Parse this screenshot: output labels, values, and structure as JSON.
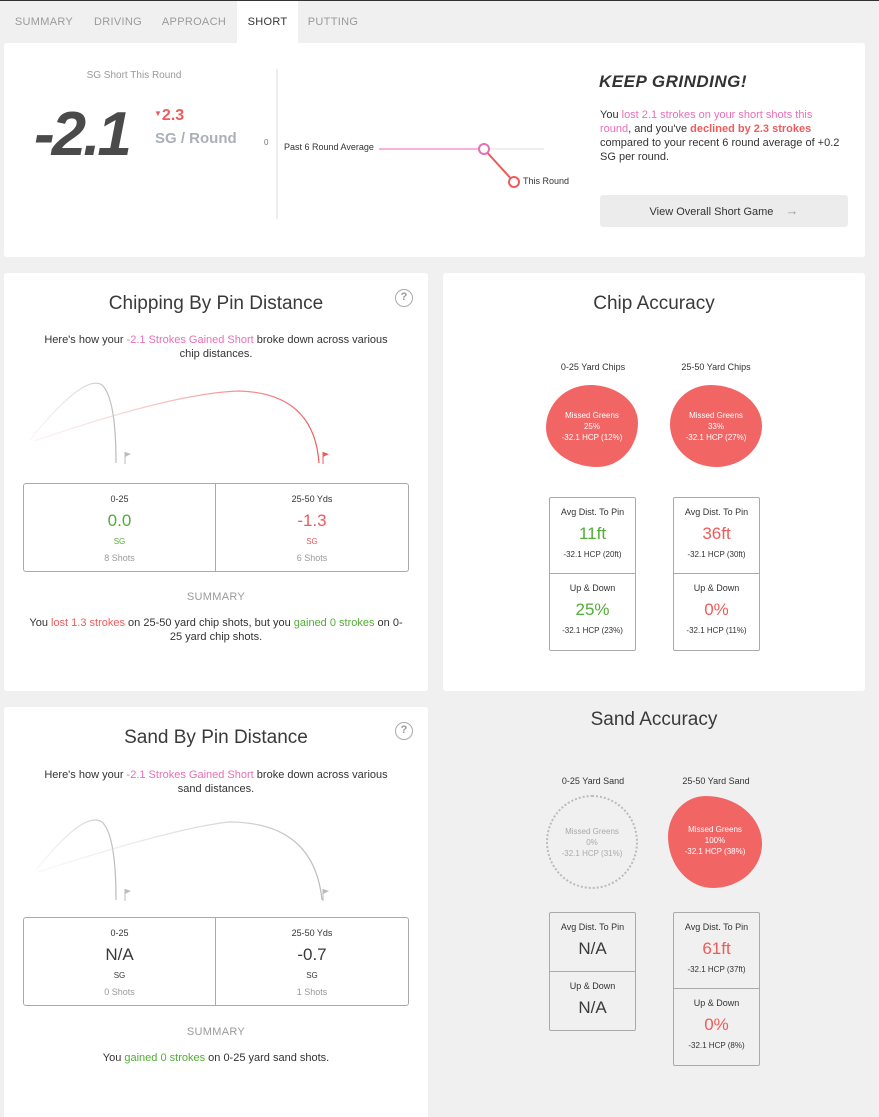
{
  "tabs": [
    {
      "label": "SUMMARY"
    },
    {
      "label": "DRIVING"
    },
    {
      "label": "APPROACH"
    },
    {
      "label": "SHORT"
    },
    {
      "label": "PUTTING"
    }
  ],
  "top": {
    "heading": "SG Short This Round",
    "big_value": "-2.1",
    "delta": "2.3",
    "unit": "SG / Round",
    "axis_zero": "0",
    "avg_label": "Past 6 Round Average",
    "this_label": "This Round",
    "headline": "KEEP GRINDING!",
    "desc": {
      "p1": "You ",
      "p2": "lost 2.1 strokes on your short shots this round",
      "p3": ", and you've ",
      "p4": "declined by 2.3 strokes",
      "p5": " compared to your recent 6 round average of +0.2 SG per round."
    },
    "button": "View Overall Short Game"
  },
  "chipping": {
    "title": "Chipping By Pin Distance",
    "help": "?",
    "intro": {
      "p1": "Here's how your ",
      "p2": "-2.1 Strokes Gained Short",
      "p3": " broke down across various chip distances."
    },
    "cells": [
      {
        "label": "0-25",
        "value": "0.0",
        "unit": "SG",
        "shots": "8 Shots"
      },
      {
        "label": "25-50 Yds",
        "value": "-1.3",
        "unit": "SG",
        "shots": "6 Shots"
      }
    ],
    "summary_heading": "SUMMARY",
    "summary": {
      "p1": "You ",
      "p2": "lost 1.3 strokes",
      "p3": " on 25-50 yard chip shots, but you ",
      "p4": "gained 0 strokes",
      "p5": " on 0-25 yard chip shots."
    }
  },
  "chip_accuracy": {
    "title": "Chip Accuracy",
    "groups": [
      {
        "label": "0-25 Yard Chips",
        "blob": {
          "l1": "Missed Greens",
          "l2": "25%",
          "l3": "-32.1 HCP (12%)"
        },
        "avg_h": "Avg Dist. To Pin",
        "avg_v": "11ft",
        "avg_s": "-32.1 HCP (20ft)",
        "ud_h": "Up & Down",
        "ud_v": "25%",
        "ud_s": "-32.1 HCP (23%)"
      },
      {
        "label": "25-50 Yard Chips",
        "blob": {
          "l1": "Missed Greens",
          "l2": "33%",
          "l3": "-32.1 HCP (27%)"
        },
        "avg_h": "Avg Dist. To Pin",
        "avg_v": "36ft",
        "avg_s": "-32.1 HCP (30ft)",
        "ud_h": "Up & Down",
        "ud_v": "0%",
        "ud_s": "-32.1 HCP (11%)"
      }
    ]
  },
  "sand": {
    "title": "Sand By Pin Distance",
    "help": "?",
    "intro": {
      "p1": "Here's how your ",
      "p2": "-2.1 Strokes Gained Short",
      "p3": " broke down across various sand distances."
    },
    "cells": [
      {
        "label": "0-25",
        "value": "N/A",
        "unit": "SG",
        "shots": "0 Shots"
      },
      {
        "label": "25-50 Yds",
        "value": "-0.7",
        "unit": "SG",
        "shots": "1 Shots"
      }
    ],
    "summary_heading": "SUMMARY",
    "summary": {
      "p1": "You ",
      "p2": "gained 0 strokes",
      "p3": " on 0-25 yard sand shots."
    }
  },
  "sand_accuracy": {
    "title": "Sand Accuracy",
    "groups": [
      {
        "label": "0-25 Yard Sand",
        "blob": {
          "l1": "Missed Greens",
          "l2": "0%",
          "l3": "-32.1 HCP (31%)"
        },
        "avg_h": "Avg Dist. To Pin",
        "avg_v": "N/A",
        "ud_h": "Up & Down",
        "ud_v": "N/A"
      },
      {
        "label": "25-50 Yard Sand",
        "blob": {
          "l1": "Missed Greens",
          "l2": "100%",
          "l3": "-32.1 HCP (38%)"
        },
        "avg_h": "Avg Dist. To Pin",
        "avg_v": "61ft",
        "avg_s": "-32.1 HCP (37ft)",
        "ud_h": "Up & Down",
        "ud_v": "0%",
        "ud_s": "-32.1 HCP (8%)"
      }
    ]
  },
  "colors": {
    "accent_red": "#ef5b5b",
    "accent_pink": "#e96fb5",
    "accent_green": "#52ad37"
  }
}
